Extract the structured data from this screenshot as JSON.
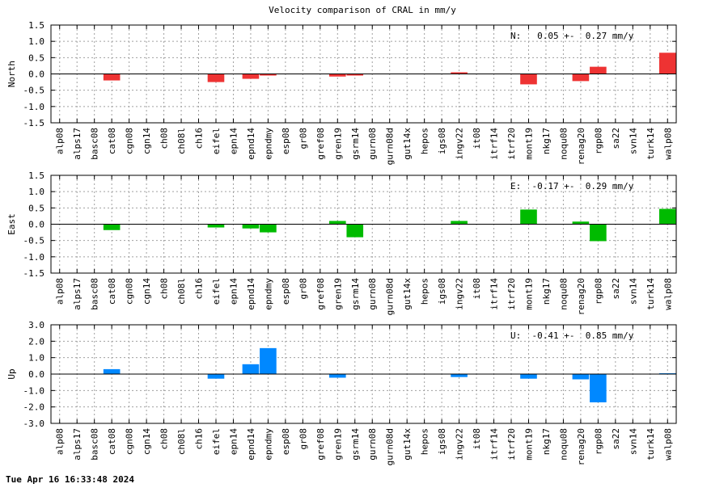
{
  "title": "Velocity comparison of CRAL in mm/y",
  "timestamp": "Tue Apr 16 16:33:48 2024",
  "chart_data": [
    {
      "type": "bar",
      "ylabel": "North",
      "ylim": [
        -1.5,
        1.5
      ],
      "yticks": [
        "1.5",
        "1.0",
        "0.5",
        "0.0",
        "-0.5",
        "-1.0",
        "-1.5"
      ],
      "ytick_values": [
        1.5,
        1.0,
        0.5,
        0.0,
        -0.5,
        -1.0,
        -1.5
      ],
      "grid": true,
      "stat": "N:   0.05 +-  0.27 mm/y",
      "color": "#ee3333",
      "categories": [
        "alp08",
        "alps17",
        "basc08",
        "cat08",
        "cgn08",
        "cgn14",
        "ch08",
        "ch08l",
        "ch16",
        "eifel",
        "epn14",
        "epnd14",
        "epndmy",
        "esp08",
        "gr08",
        "gref08",
        "gren19",
        "gsrm14",
        "gurn08",
        "gurn08d",
        "gut14x",
        "hepos",
        "igs08",
        "ingv22",
        "it08",
        "itrf14",
        "itrf20",
        "mont19",
        "nkg17",
        "noqu08",
        "renag20",
        "rgp08",
        "sa22",
        "svn14",
        "turk14",
        "walp08"
      ],
      "values": [
        null,
        null,
        null,
        -0.2,
        null,
        null,
        null,
        null,
        null,
        -0.25,
        null,
        -0.15,
        -0.05,
        null,
        null,
        null,
        -0.08,
        -0.05,
        null,
        null,
        null,
        null,
        null,
        0.05,
        null,
        null,
        null,
        -0.32,
        null,
        null,
        -0.22,
        0.22,
        null,
        null,
        null,
        0.65
      ]
    },
    {
      "type": "bar",
      "ylabel": "East",
      "ylim": [
        -1.5,
        1.5
      ],
      "yticks": [
        "1.5",
        "1.0",
        "0.5",
        "0.0",
        "-0.5",
        "-1.0",
        "-1.5"
      ],
      "ytick_values": [
        1.5,
        1.0,
        0.5,
        0.0,
        -0.5,
        -1.0,
        -1.5
      ],
      "grid": true,
      "stat": "E:  -0.17 +-  0.29 mm/y",
      "color": "#00bb00",
      "categories": [
        "alp08",
        "alps17",
        "basc08",
        "cat08",
        "cgn08",
        "cgn14",
        "ch08",
        "ch08l",
        "ch16",
        "eifel",
        "epn14",
        "epnd14",
        "epndmy",
        "esp08",
        "gr08",
        "gref08",
        "gren19",
        "gsrm14",
        "gurn08",
        "gurn08d",
        "gut14x",
        "hepos",
        "igs08",
        "ingv22",
        "it08",
        "itrf14",
        "itrf20",
        "mont19",
        "nkg17",
        "noqu08",
        "renag20",
        "rgp08",
        "sa22",
        "svn14",
        "turk14",
        "walp08"
      ],
      "values": [
        null,
        null,
        null,
        -0.18,
        null,
        null,
        null,
        null,
        null,
        -0.1,
        null,
        -0.13,
        -0.25,
        null,
        null,
        null,
        0.1,
        -0.4,
        null,
        null,
        null,
        null,
        null,
        0.1,
        null,
        null,
        null,
        0.45,
        null,
        null,
        0.08,
        -0.52,
        null,
        null,
        null,
        0.47
      ]
    },
    {
      "type": "bar",
      "ylabel": "Up",
      "ylim": [
        -3.0,
        3.0
      ],
      "yticks": [
        "3.0",
        "2.0",
        "1.0",
        "0.0",
        "-1.0",
        "-2.0",
        "-3.0"
      ],
      "ytick_values": [
        3.0,
        2.0,
        1.0,
        0.0,
        -1.0,
        -2.0,
        -3.0
      ],
      "grid": true,
      "stat": "U:  -0.41 +-  0.85 mm/y",
      "color": "#0088ff",
      "categories": [
        "alp08",
        "alps17",
        "basc08",
        "cat08",
        "cgn08",
        "cgn14",
        "ch08",
        "ch08l",
        "ch16",
        "eifel",
        "epn14",
        "epnd14",
        "epndmy",
        "esp08",
        "gr08",
        "gref08",
        "gren19",
        "gsrm14",
        "gurn08",
        "gurn08d",
        "gut14x",
        "hepos",
        "igs08",
        "ingv22",
        "it08",
        "itrf14",
        "itrf20",
        "mont19",
        "nkg17",
        "noqu08",
        "renag20",
        "rgp08",
        "sa22",
        "svn14",
        "turk14",
        "walp08"
      ],
      "values": [
        null,
        null,
        null,
        0.3,
        null,
        null,
        null,
        null,
        null,
        -0.28,
        null,
        0.6,
        1.58,
        null,
        null,
        null,
        -0.22,
        null,
        null,
        null,
        null,
        null,
        null,
        -0.18,
        null,
        null,
        null,
        -0.28,
        null,
        null,
        -0.32,
        -1.72,
        null,
        null,
        null,
        0.05
      ]
    }
  ]
}
